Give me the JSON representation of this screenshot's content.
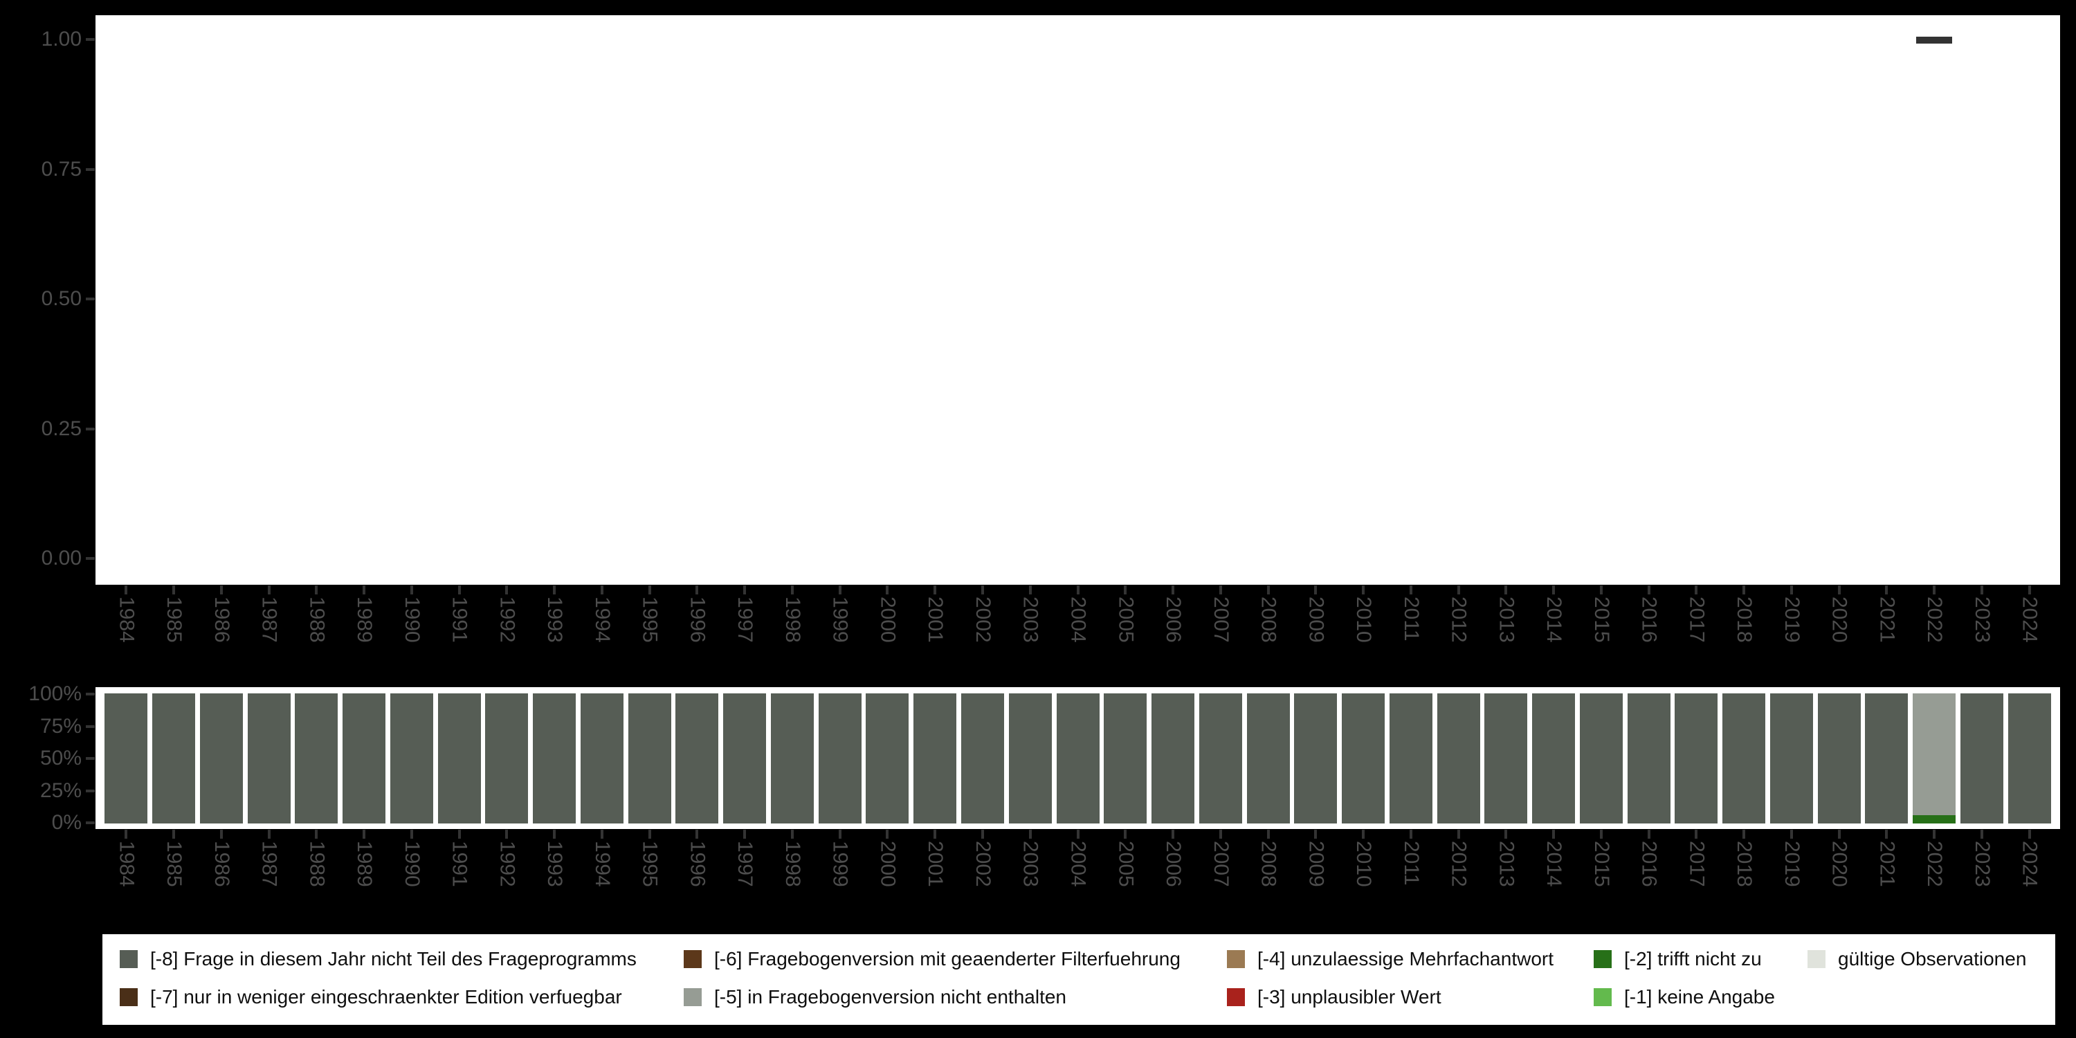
{
  "page": {
    "background": "#000000",
    "plot_background": "#ffffff",
    "axis_text_color": "#4d4d4d",
    "axis_tick_color": "#333333"
  },
  "years": [
    "1984",
    "1985",
    "1986",
    "1987",
    "1988",
    "1989",
    "1990",
    "1991",
    "1992",
    "1993",
    "1994",
    "1995",
    "1996",
    "1997",
    "1998",
    "1999",
    "2000",
    "2001",
    "2002",
    "2003",
    "2004",
    "2005",
    "2006",
    "2007",
    "2008",
    "2009",
    "2010",
    "2011",
    "2012",
    "2013",
    "2014",
    "2015",
    "2016",
    "2017",
    "2018",
    "2019",
    "2020",
    "2021",
    "2022",
    "2023",
    "2024"
  ],
  "chart_data": [
    {
      "type": "scatter",
      "title": "",
      "xlabel": "",
      "ylabel": "",
      "ylim": [
        0,
        1
      ],
      "y_tick_labels": [
        "1.00",
        "0.75",
        "0.50",
        "0.25",
        "0.00"
      ],
      "y_tick_values": [
        1.0,
        0.75,
        0.5,
        0.25,
        0.0
      ],
      "x_tick_labels": [
        "1984",
        "1985",
        "1986",
        "1987",
        "1988",
        "1989",
        "1990",
        "1991",
        "1992",
        "1993",
        "1994",
        "1995",
        "1996",
        "1997",
        "1998",
        "1999",
        "2000",
        "2001",
        "2002",
        "2003",
        "2004",
        "2005",
        "2006",
        "2007",
        "2008",
        "2009",
        "2010",
        "2011",
        "2012",
        "2013",
        "2014",
        "2015",
        "2016",
        "2017",
        "2018",
        "2019",
        "2020",
        "2021",
        "2022",
        "2023",
        "2024"
      ],
      "grid": false,
      "marker": "horizontal-dash",
      "marker_color": "#333333",
      "points": [
        {
          "x": "2022",
          "y": 1.0
        }
      ]
    },
    {
      "type": "bar",
      "subtype": "stacked-percent",
      "title": "",
      "xlabel": "",
      "ylabel": "",
      "ylim": [
        0,
        100
      ],
      "y_tick_labels": [
        "100%",
        "75%",
        "50%",
        "25%",
        "0%"
      ],
      "y_tick_values": [
        100,
        75,
        50,
        25,
        0
      ],
      "grid": false,
      "categories": [
        "1984",
        "1985",
        "1986",
        "1987",
        "1988",
        "1989",
        "1990",
        "1991",
        "1992",
        "1993",
        "1994",
        "1995",
        "1996",
        "1997",
        "1998",
        "1999",
        "2000",
        "2001",
        "2002",
        "2003",
        "2004",
        "2005",
        "2006",
        "2007",
        "2008",
        "2009",
        "2010",
        "2011",
        "2012",
        "2013",
        "2014",
        "2015",
        "2016",
        "2017",
        "2018",
        "2019",
        "2020",
        "2021",
        "2022",
        "2023",
        "2024"
      ],
      "series": [
        {
          "name": "[-8] Frage in diesem Jahr nicht Teil des Frageprogramms",
          "color": "#565D55",
          "values": [
            100,
            100,
            100,
            100,
            100,
            100,
            100,
            100,
            100,
            100,
            100,
            100,
            100,
            100,
            100,
            100,
            100,
            100,
            100,
            100,
            100,
            100,
            100,
            100,
            100,
            100,
            100,
            100,
            100,
            100,
            100,
            100,
            100,
            100,
            100,
            100,
            100,
            100,
            0,
            100,
            100
          ]
        },
        {
          "name": "[-5] in Fragebogenversion nicht enthalten",
          "color": "#969C94",
          "values": [
            0,
            0,
            0,
            0,
            0,
            0,
            0,
            0,
            0,
            0,
            0,
            0,
            0,
            0,
            0,
            0,
            0,
            0,
            0,
            0,
            0,
            0,
            0,
            0,
            0,
            0,
            0,
            0,
            0,
            0,
            0,
            0,
            0,
            0,
            0,
            0,
            0,
            0,
            93.5,
            0,
            0
          ]
        },
        {
          "name": "[-2] trifft nicht zu",
          "color": "#277018",
          "values": [
            0,
            0,
            0,
            0,
            0,
            0,
            0,
            0,
            0,
            0,
            0,
            0,
            0,
            0,
            0,
            0,
            0,
            0,
            0,
            0,
            0,
            0,
            0,
            0,
            0,
            0,
            0,
            0,
            0,
            0,
            0,
            0,
            0,
            0,
            0,
            0,
            0,
            0,
            6.5,
            0,
            0
          ]
        }
      ],
      "legend_position": "bottom"
    }
  ],
  "legend": {
    "items": [
      {
        "label": "[-8] Frage in diesem Jahr nicht Teil des Frageprogramms",
        "color": "#565D55"
      },
      {
        "label": "[-7] nur in weniger eingeschraenkter Edition verfuegbar",
        "color": "#4A2F18"
      },
      {
        "label": "[-6] Fragebogenversion mit geaenderter Filterfuehrung",
        "color": "#5C381A"
      },
      {
        "label": "[-5] in Fragebogenversion nicht enthalten",
        "color": "#969C94"
      },
      {
        "label": "[-4] unzulaessige Mehrfachantwort",
        "color": "#9B7A53"
      },
      {
        "label": "[-3] unplausibler Wert",
        "color": "#A9221C"
      },
      {
        "label": "[-2] trifft nicht zu",
        "color": "#277018"
      },
      {
        "label": "[-1] keine Angabe",
        "color": "#63BA4D"
      },
      {
        "label": "gültige Observationen",
        "color": "#E0E3DC"
      }
    ]
  }
}
